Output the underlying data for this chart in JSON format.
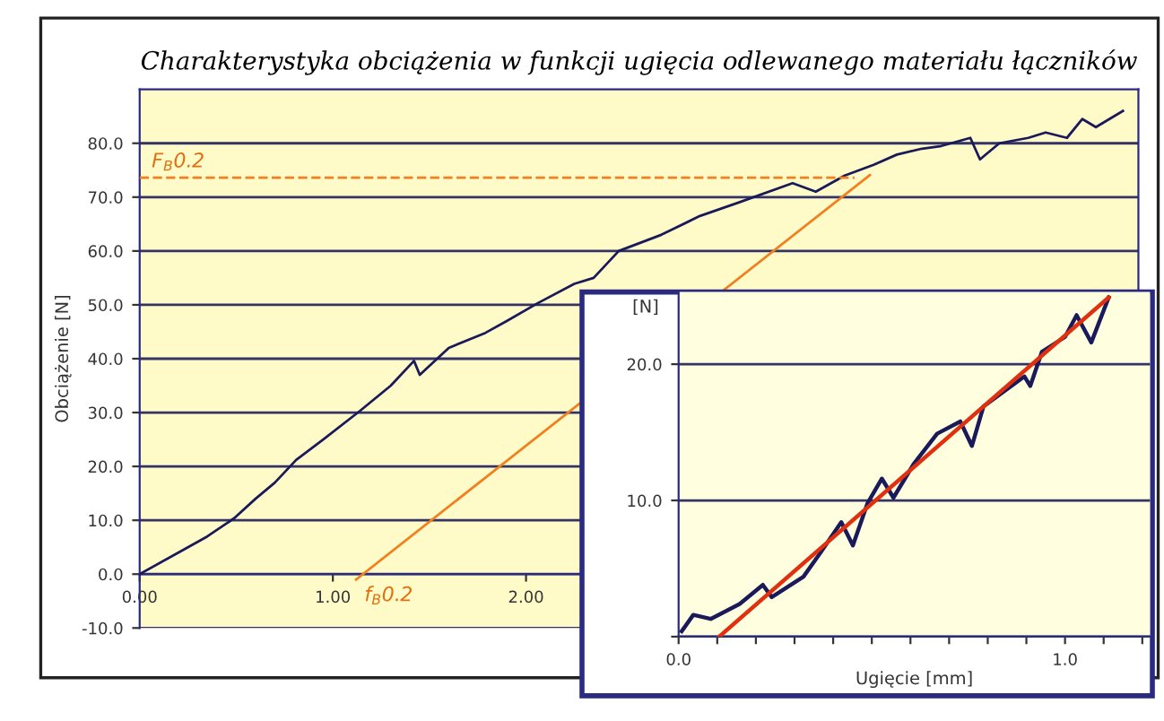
{
  "chart_data": [
    {
      "type": "line",
      "title": "Charakterystyka obciążenia w funkcji ugięcia odlewanego materiału łączników",
      "ylabel": "Obciążenie [N]",
      "xlim": [
        0,
        5.17
      ],
      "ylim": [
        -10,
        90
      ],
      "xticks": [
        {
          "value": 0,
          "label": "0.00"
        },
        {
          "value": 1,
          "label": "1.00"
        },
        {
          "value": 2,
          "label": "2.00"
        }
      ],
      "yticks": [
        {
          "value": -10,
          "label": "-10.0"
        },
        {
          "value": 0,
          "label": "0.0"
        },
        {
          "value": 10,
          "label": "10.0"
        },
        {
          "value": 20,
          "label": "20.0"
        },
        {
          "value": 30,
          "label": "30.0"
        },
        {
          "value": 40,
          "label": "40.0"
        },
        {
          "value": 50,
          "label": "50.0"
        },
        {
          "value": 60,
          "label": "60.0"
        },
        {
          "value": 70,
          "label": "70.0"
        },
        {
          "value": 80,
          "label": "80.0"
        }
      ],
      "grid": "y",
      "legend": false,
      "series": [
        {
          "color": "#1a1a5a",
          "x": [
            0,
            0.2,
            0.35,
            0.49,
            0.6,
            0.7,
            0.81,
            0.95,
            1.14,
            1.3,
            1.42,
            1.45,
            1.6,
            1.79,
            1.9,
            2.06,
            2.25,
            2.35,
            2.48,
            2.7,
            2.9,
            3.1,
            3.38,
            3.5,
            3.65,
            3.8,
            3.92,
            4.05,
            4.15,
            4.3,
            4.35,
            4.45,
            4.6,
            4.69,
            4.8,
            4.88,
            4.95,
            5.09
          ],
          "values": [
            0,
            4,
            7,
            10.4,
            14,
            17,
            21.2,
            25,
            30.3,
            35,
            39.6,
            37,
            42,
            44.8,
            47,
            50.3,
            53.9,
            55,
            60,
            63,
            66.5,
            69,
            72.6,
            71,
            74,
            76,
            77.9,
            79,
            79.5,
            81,
            77,
            80,
            81,
            82,
            81,
            84.5,
            83,
            86
          ]
        },
        {
          "color": "#f08020",
          "x": [
            1.12,
            3.78
          ],
          "values": [
            -1,
            74.1
          ]
        },
        {
          "color": "#f08020",
          "line_style": "dashed",
          "x": [
            0,
            3.7
          ],
          "values": [
            73.6,
            73.6
          ]
        }
      ],
      "annotations": [
        "F$_{B}$0.2",
        "f$_{B}$0.2"
      ]
    },
    {
      "type": "line",
      "xlabel": "Ugięcie [mm]",
      "ylabel": "[N]",
      "xlim": [
        0,
        1.22
      ],
      "ylim": [
        0,
        25.3
      ],
      "xticks": [
        {
          "value": 0,
          "label": "0.0"
        },
        {
          "value": 0.1,
          "label": null
        },
        {
          "value": 0.2,
          "label": null
        },
        {
          "value": 0.3,
          "label": null
        },
        {
          "value": 0.4,
          "label": null
        },
        {
          "value": 0.5,
          "label": null
        },
        {
          "value": 0.6,
          "label": null
        },
        {
          "value": 0.7,
          "label": null
        },
        {
          "value": 0.8,
          "label": null
        },
        {
          "value": 0.9,
          "label": null
        },
        {
          "value": 1,
          "label": "1.0"
        },
        {
          "value": 1.1,
          "label": null
        },
        {
          "value": 1.2,
          "label": null
        }
      ],
      "yticks": [
        {
          "value": 0,
          "label": null
        },
        {
          "value": 10,
          "label": "10.0"
        },
        {
          "value": 20,
          "label": "20.0"
        }
      ],
      "grid": "y",
      "legend": false,
      "series": [
        {
          "color": "#1a1a5a",
          "x": [
            0.008,
            0.038,
            0.083,
            0.158,
            0.218,
            0.241,
            0.323,
            0.368,
            0.421,
            0.451,
            0.489,
            0.526,
            0.556,
            0.609,
            0.669,
            0.729,
            0.759,
            0.789,
            0.895,
            0.91,
            0.94,
            1.0,
            1.03,
            1.068,
            1.113
          ],
          "values": [
            0.4,
            1.6,
            1.3,
            2.4,
            3.8,
            2.9,
            4.4,
            6.2,
            8.4,
            6.7,
            9.8,
            11.6,
            10.2,
            12.7,
            14.9,
            15.8,
            14.0,
            16.9,
            19.1,
            18.4,
            20.9,
            22.0,
            23.6,
            21.6,
            24.9
          ]
        },
        {
          "color": "#e03010",
          "x": [
            0.105,
            1.113
          ],
          "values": [
            0,
            24.9
          ]
        }
      ]
    }
  ]
}
